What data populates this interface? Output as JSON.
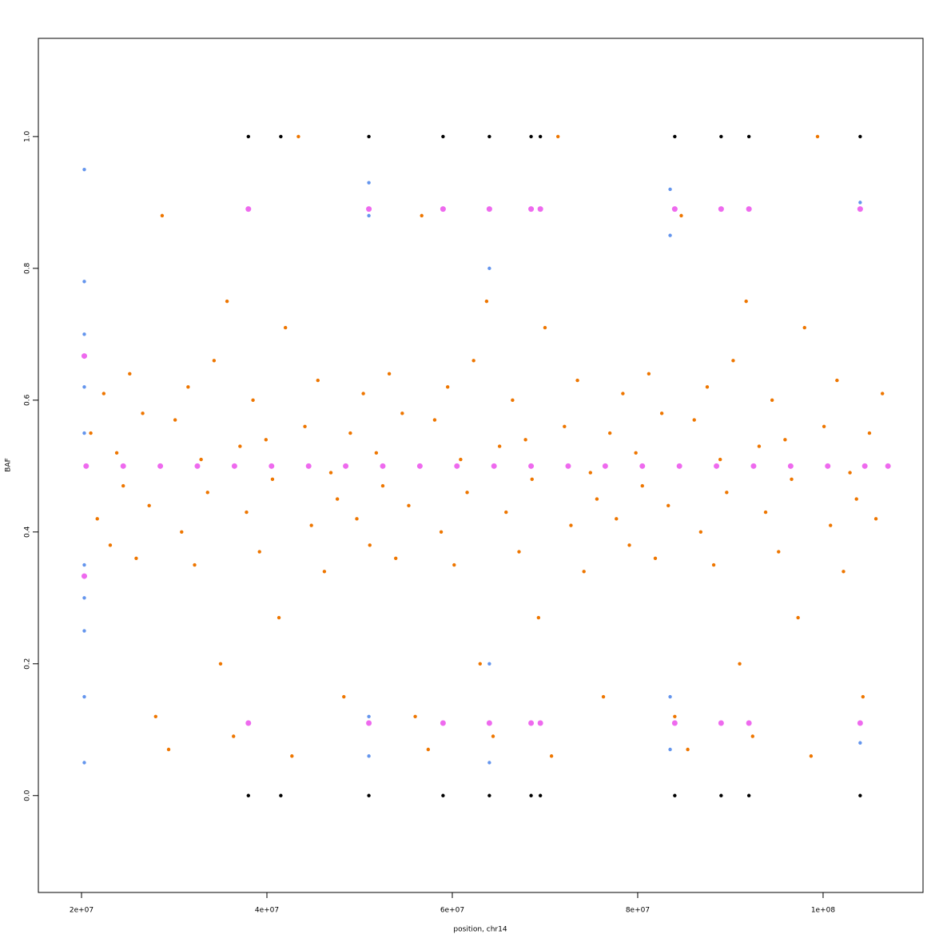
{
  "chart_data": {
    "type": "scatter",
    "x_label": "position, chr14",
    "y_label": "BAF",
    "xlim": [
      15345000,
      110780000
    ],
    "ylim": [
      -0.147,
      1.149
    ],
    "xticks": [
      {
        "value": 20000000,
        "label": "2e+07"
      },
      {
        "value": 40000000,
        "label": "4e+07"
      },
      {
        "value": 60000000,
        "label": "6e+07"
      },
      {
        "value": 80000000,
        "label": "8e+07"
      },
      {
        "value": 100000000,
        "label": "1e+08"
      }
    ],
    "yticks": [
      {
        "value": 0,
        "label": "0.0"
      },
      0.2,
      0.4,
      0.6,
      0.8,
      {
        "value": 1,
        "label": "1.0"
      }
    ],
    "series": [
      {
        "color": "#ee7600",
        "x": [
          21000000.0,
          21700000.0,
          22400000.0,
          23100000.0,
          23800000.0,
          24500000.0,
          25200000.0,
          25900000.0,
          26600000.0,
          27300000.0,
          28000000.0,
          28700000.0,
          29400000.0,
          30100000.0,
          30800000.0,
          31500000.0,
          32200000.0,
          32900000.0,
          33600000.0,
          34300000.0,
          35000000.0,
          35700000.0,
          36400000.0,
          37100000.0,
          37800000.0,
          38500000.0,
          39200000.0,
          39900000.0,
          40600000.0,
          41300000.0,
          42000000.0,
          42700000.0,
          43400000.0,
          44100000.0,
          44800000.0,
          45500000.0,
          46200000.0,
          46900000.0,
          47600000.0,
          48300000.0,
          49000000.0,
          49700000.0,
          50400000.0,
          51100000.0,
          51800000.0,
          52500000.0,
          53200000.0,
          53900000.0,
          54600000.0,
          55300000.0,
          56000000.0,
          56700000.0,
          57400000.0,
          58100000.0,
          58800000.0,
          59500000.0,
          60200000.0,
          60900000.0,
          61600000.0,
          62300000.0,
          63000000.0,
          63700000.0,
          64400000.0,
          65100000.0,
          65800000.0,
          66500000.0,
          67200000.0,
          67900000.0,
          68600000.0,
          69300000.0,
          70000000.0,
          70700000.0,
          71400000.0,
          72100000.0,
          72800000.0,
          73500000.0,
          74200000.0,
          74900000.0,
          75600000.0,
          76300000.0,
          77000000.0,
          77700000.0,
          78400000.0,
          79100000.0,
          79800000.0,
          80500000.0,
          81200000.0,
          81900000.0,
          82600000.0,
          83300000.0,
          84000000.0,
          84700000.0,
          85400000.0,
          86100000.0,
          86800000.0,
          87500000.0,
          88200000.0,
          88900000.0,
          89600000.0,
          90300000.0,
          91000000.0,
          91700000.0,
          92400000.0,
          93100000.0,
          93800000.0,
          94500000.0,
          95200000.0,
          95900000.0,
          96600000.0,
          97300000.0,
          98000000.0,
          98700000.0,
          99400000.0,
          100100000.0,
          100800000.0,
          101500000.0,
          102200000.0,
          102900000.0,
          103600000.0,
          104300000.0,
          105000000.0,
          105700000.0,
          106400000.0
        ],
        "values": [
          0.55,
          0.42,
          0.61,
          0.38,
          0.52,
          0.47,
          0.64,
          0.36,
          0.58,
          0.44,
          0.12,
          0.88,
          0.07,
          0.57,
          0.4,
          0.62,
          0.35,
          0.51,
          0.46,
          0.66,
          0.2,
          0.75,
          0.09,
          0.53,
          0.43,
          0.6,
          0.37,
          0.54,
          0.48,
          0.27,
          0.71,
          0.06,
          1.0,
          0.56,
          0.41,
          0.63,
          0.34,
          0.49,
          0.45,
          0.15,
          0.55,
          0.42,
          0.61,
          0.38,
          0.52,
          0.47,
          0.64,
          0.36,
          0.58,
          0.44,
          0.12,
          0.88,
          0.07,
          0.57,
          0.4,
          0.62,
          0.35,
          0.51,
          0.46,
          0.66,
          0.2,
          0.75,
          0.09,
          0.53,
          0.43,
          0.6,
          0.37,
          0.54,
          0.48,
          0.27,
          0.71,
          0.06,
          1.0,
          0.56,
          0.41,
          0.63,
          0.34,
          0.49,
          0.45,
          0.15,
          0.55,
          0.42,
          0.61,
          0.38,
          0.52,
          0.47,
          0.64,
          0.36,
          0.58,
          0.44,
          0.12,
          0.88,
          0.07,
          0.57,
          0.4,
          0.62,
          0.35,
          0.51,
          0.46,
          0.66,
          0.2,
          0.75,
          0.09,
          0.53,
          0.43,
          0.6,
          0.37,
          0.54,
          0.48,
          0.27,
          0.71,
          0.06,
          1.0,
          0.56,
          0.41,
          0.63,
          0.34,
          0.49,
          0.45,
          0.15,
          0.55,
          0.42,
          0.61
        ]
      },
      {
        "color": "#6495ed",
        "x": [
          20300000.0,
          20300000.0,
          20300000.0,
          20300000.0,
          20300000.0,
          20300000.0,
          20300000.0,
          20300000.0,
          20300000.0,
          20300000.0,
          51000000.0,
          51000000.0,
          51000000.0,
          51000000.0,
          64000000.0,
          64000000.0,
          64000000.0,
          83500000.0,
          83500000.0,
          83500000.0,
          83500000.0,
          104000000.0,
          104000000.0
        ],
        "values": [
          0.05,
          0.15,
          0.25,
          0.3,
          0.35,
          0.55,
          0.62,
          0.7,
          0.78,
          0.95,
          0.06,
          0.12,
          0.88,
          0.93,
          0.05,
          0.2,
          0.8,
          0.07,
          0.15,
          0.85,
          0.92,
          0.08,
          0.9
        ]
      },
      {
        "color": "#ee6aee",
        "x": [
          20500000.0,
          24500000.0,
          28500000.0,
          32500000.0,
          36500000.0,
          40500000.0,
          44500000.0,
          48500000.0,
          52500000.0,
          56500000.0,
          60500000.0,
          64500000.0,
          68500000.0,
          72500000.0,
          76500000.0,
          80500000.0,
          84500000.0,
          88500000.0,
          92500000.0,
          96500000.0,
          100500000.0,
          104500000.0,
          107000000.0,
          20300000.0,
          20300000.0,
          38000000.0,
          38000000.0,
          51000000.0,
          51000000.0,
          59000000.0,
          59000000.0,
          64000000.0,
          64000000.0,
          68500000.0,
          68500000.0,
          69500000.0,
          69500000.0,
          84000000.0,
          84000000.0,
          89000000.0,
          89000000.0,
          92000000.0,
          92000000.0,
          104000000.0,
          104000000.0
        ],
        "values": [
          0.5,
          0.5,
          0.5,
          0.5,
          0.5,
          0.5,
          0.5,
          0.5,
          0.5,
          0.5,
          0.5,
          0.5,
          0.5,
          0.5,
          0.5,
          0.5,
          0.5,
          0.5,
          0.5,
          0.5,
          0.5,
          0.5,
          0.5,
          0.667,
          0.333,
          0.89,
          0.11,
          0.89,
          0.11,
          0.89,
          0.11,
          0.89,
          0.11,
          0.89,
          0.11,
          0.89,
          0.11,
          0.89,
          0.11,
          0.89,
          0.11,
          0.89,
          0.11,
          0.89,
          0.11
        ]
      },
      {
        "color": "#000000",
        "x": [
          38000000.0,
          41500000.0,
          51000000.0,
          59000000.0,
          64000000.0,
          68500000.0,
          69500000.0,
          84000000.0,
          89000000.0,
          92000000.0,
          104000000.0,
          38000000.0,
          41500000.0,
          51000000.0,
          59000000.0,
          64000000.0,
          68500000.0,
          69500000.0,
          84000000.0,
          89000000.0,
          92000000.0,
          104000000.0
        ],
        "values": [
          0,
          0,
          0,
          0,
          0,
          0,
          0,
          0,
          0,
          0,
          0,
          1,
          1,
          1,
          1,
          1,
          1,
          1,
          1,
          1,
          1,
          1
        ]
      }
    ]
  }
}
